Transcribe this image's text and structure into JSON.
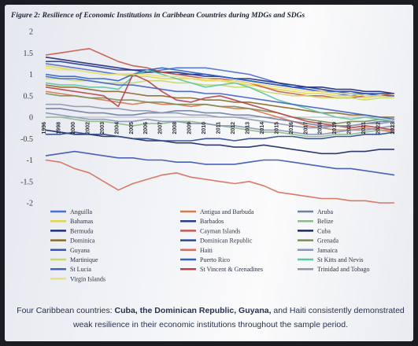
{
  "chart_data": {
    "type": "line",
    "title": "Figure 2: Resilience of Economic Institutions in Caribbean Countries during MDGs and SDGs",
    "xlabel": "",
    "ylabel": "",
    "ylim": [
      -2,
      2
    ],
    "yticks": [
      "2",
      "1.5",
      "1",
      "0.5",
      "0",
      "-0.5",
      "-1",
      "-1.5",
      "-2"
    ],
    "x": [
      "1996",
      "1998",
      "2000",
      "2002",
      "2003",
      "2004",
      "2005",
      "2006",
      "2007",
      "2008",
      "2009",
      "2010",
      "2011",
      "2012",
      "2013",
      "2014",
      "2015",
      "2016",
      "2017",
      "2018",
      "2019",
      "2020",
      "2021",
      "2022",
      "2023"
    ],
    "grid": false,
    "legend_position": "bottom",
    "series": [
      {
        "name": "Anguilla",
        "color": "#4a6fd0",
        "values": [
          1.25,
          1.2,
          1.15,
          1.1,
          1.05,
          1.0,
          1.0,
          1.05,
          1.1,
          1.15,
          1.15,
          1.15,
          1.1,
          1.05,
          1.0,
          0.9,
          0.8,
          0.7,
          0.65,
          0.6,
          0.55,
          0.5,
          0.55,
          0.5,
          0.5
        ]
      },
      {
        "name": "Antigua and Barbuda",
        "color": "#d9794f",
        "values": [
          0.6,
          0.55,
          0.5,
          0.45,
          0.4,
          0.35,
          0.3,
          0.35,
          0.3,
          0.3,
          0.25,
          0.3,
          0.25,
          0.2,
          0.2,
          0.1,
          0.0,
          -0.1,
          -0.2,
          -0.25,
          -0.3,
          -0.3,
          -0.25,
          -0.3,
          -0.35
        ]
      },
      {
        "name": "Aruba",
        "color": "#6f7fa6",
        "values": [
          0.2,
          0.2,
          0.15,
          0.1,
          0.1,
          0.05,
          0.05,
          0.1,
          0.1,
          0.15,
          0.15,
          0.1,
          0.1,
          0.05,
          0.05,
          0.0,
          -0.05,
          -0.1,
          -0.15,
          -0.2,
          -0.2,
          -0.2,
          -0.15,
          -0.1,
          -0.1
        ]
      },
      {
        "name": "Bahamas",
        "color": "#e3d34a",
        "values": [
          1.2,
          1.15,
          1.1,
          1.05,
          1.0,
          1.0,
          0.95,
          0.95,
          0.9,
          0.9,
          0.9,
          0.85,
          0.85,
          0.8,
          0.75,
          0.7,
          0.65,
          0.6,
          0.55,
          0.55,
          0.5,
          0.5,
          0.45,
          0.5,
          0.5
        ]
      },
      {
        "name": "Barbados",
        "color": "#2c3c8c",
        "values": [
          1.3,
          1.3,
          1.25,
          1.2,
          1.15,
          1.1,
          1.1,
          1.05,
          1.05,
          1.0,
          1.0,
          0.95,
          0.95,
          0.9,
          0.85,
          0.8,
          0.75,
          0.7,
          0.7,
          0.65,
          0.6,
          0.6,
          0.55,
          0.55,
          0.55
        ]
      },
      {
        "name": "Belize",
        "color": "#8fb98a",
        "values": [
          0.0,
          0.0,
          -0.05,
          -0.1,
          -0.1,
          -0.15,
          -0.2,
          -0.15,
          -0.15,
          -0.1,
          -0.1,
          -0.15,
          -0.2,
          -0.25,
          -0.3,
          -0.35,
          -0.35,
          -0.4,
          -0.45,
          -0.45,
          -0.4,
          -0.4,
          -0.35,
          -0.3,
          -0.3
        ]
      },
      {
        "name": "Bermuda",
        "color": "#1f2d7a",
        "values": [
          1.4,
          1.35,
          1.3,
          1.25,
          1.2,
          1.15,
          1.1,
          1.1,
          1.05,
          1.05,
          1.0,
          1.0,
          0.95,
          0.9,
          0.9,
          0.85,
          0.8,
          0.75,
          0.7,
          0.7,
          0.65,
          0.65,
          0.6,
          0.6,
          0.55
        ]
      },
      {
        "name": "Cayman Islands",
        "color": "#c75a4c",
        "values": [
          1.45,
          1.5,
          1.55,
          1.6,
          1.45,
          1.3,
          1.2,
          1.15,
          1.05,
          1.0,
          0.95,
          0.9,
          0.9,
          0.85,
          0.8,
          0.7,
          0.6,
          0.55,
          0.5,
          0.5,
          0.45,
          0.45,
          0.5,
          0.5,
          0.55
        ]
      },
      {
        "name": "Cuba",
        "color": "#1d2a63",
        "values": [
          -0.3,
          -0.35,
          -0.4,
          -0.4,
          -0.45,
          -0.45,
          -0.5,
          -0.55,
          -0.55,
          -0.6,
          -0.6,
          -0.65,
          -0.65,
          -0.7,
          -0.7,
          -0.65,
          -0.7,
          -0.75,
          -0.8,
          -0.85,
          -0.85,
          -0.8,
          -0.8,
          -0.75,
          -0.75
        ]
      },
      {
        "name": "Dominica",
        "color": "#8a6a28",
        "values": [
          0.75,
          0.7,
          0.7,
          0.65,
          0.6,
          0.6,
          0.55,
          0.5,
          0.5,
          0.45,
          0.45,
          0.4,
          0.4,
          0.35,
          0.35,
          0.3,
          0.25,
          0.2,
          0.15,
          0.1,
          0.1,
          0.05,
          0.05,
          0.0,
          0.0
        ]
      },
      {
        "name": "Dominican Republic",
        "color": "#2b4a8c",
        "values": [
          -0.4,
          -0.4,
          -0.35,
          -0.4,
          -0.4,
          -0.45,
          -0.5,
          -0.5,
          -0.55,
          -0.55,
          -0.55,
          -0.5,
          -0.5,
          -0.55,
          -0.5,
          -0.5,
          -0.45,
          -0.45,
          -0.5,
          -0.5,
          -0.45,
          -0.45,
          -0.4,
          -0.4,
          -0.35
        ]
      },
      {
        "name": "Grenada",
        "color": "#7a8d54",
        "values": [
          0.55,
          0.5,
          0.5,
          0.45,
          0.45,
          0.4,
          0.4,
          0.35,
          0.35,
          0.3,
          0.3,
          0.3,
          0.25,
          0.25,
          0.2,
          0.15,
          0.1,
          0.0,
          -0.05,
          -0.1,
          -0.15,
          -0.1,
          -0.1,
          -0.05,
          -0.1
        ]
      },
      {
        "name": "Guyana",
        "color": "#3a55b0",
        "values": [
          -0.9,
          -0.85,
          -0.8,
          -0.85,
          -0.9,
          -0.95,
          -0.95,
          -1.0,
          -1.0,
          -1.05,
          -1.05,
          -1.1,
          -1.1,
          -1.1,
          -1.05,
          -1.0,
          -1.0,
          -1.05,
          -1.1,
          -1.15,
          -1.2,
          -1.2,
          -1.25,
          -1.3,
          -1.35
        ]
      },
      {
        "name": "Haiti",
        "color": "#d4705a",
        "values": [
          -1.0,
          -1.05,
          -1.2,
          -1.3,
          -1.5,
          -1.7,
          -1.55,
          -1.45,
          -1.35,
          -1.3,
          -1.4,
          -1.45,
          -1.5,
          -1.55,
          -1.5,
          -1.6,
          -1.75,
          -1.8,
          -1.85,
          -1.9,
          -1.9,
          -1.95,
          -1.95,
          -2.0,
          -2.0
        ]
      },
      {
        "name": "Jamaica",
        "color": "#8a96b8",
        "values": [
          0.1,
          0.05,
          0.0,
          -0.05,
          -0.05,
          -0.1,
          -0.1,
          -0.05,
          -0.1,
          -0.1,
          -0.15,
          -0.15,
          -0.2,
          -0.2,
          -0.25,
          -0.3,
          -0.3,
          -0.35,
          -0.4,
          -0.4,
          -0.35,
          -0.3,
          -0.3,
          -0.25,
          -0.2
        ]
      },
      {
        "name": "Martinique",
        "color": "#c9d86a",
        "values": [
          0.9,
          0.9,
          0.85,
          0.85,
          0.8,
          0.8,
          0.8,
          0.85,
          0.85,
          0.8,
          0.8,
          0.75,
          0.75,
          0.7,
          0.7,
          0.6,
          0.55,
          0.5,
          0.5,
          0.45,
          0.45,
          0.45,
          0.4,
          0.45,
          0.45
        ]
      },
      {
        "name": "Puerto Rico",
        "color": "#2f62c9",
        "values": [
          1.0,
          0.95,
          0.95,
          0.9,
          0.9,
          0.85,
          1.0,
          1.1,
          1.15,
          1.1,
          1.05,
          1.0,
          0.95,
          0.9,
          0.85,
          0.8,
          0.75,
          0.7,
          0.65,
          0.6,
          0.6,
          0.55,
          0.55,
          0.5,
          0.5
        ]
      },
      {
        "name": "St Kitts and Nevis",
        "color": "#5fc6a3",
        "values": [
          0.8,
          0.75,
          0.75,
          0.7,
          0.7,
          0.65,
          0.95,
          1.1,
          1.0,
          0.9,
          0.8,
          0.7,
          0.75,
          0.8,
          0.7,
          0.55,
          0.4,
          0.3,
          0.2,
          0.1,
          0.0,
          -0.05,
          0.0,
          -0.05,
          -0.1
        ]
      },
      {
        "name": "St Lucia",
        "color": "#4164c2",
        "values": [
          0.95,
          0.9,
          0.9,
          0.85,
          0.8,
          0.75,
          0.75,
          0.7,
          0.65,
          0.6,
          0.6,
          0.55,
          0.55,
          0.5,
          0.45,
          0.4,
          0.35,
          0.3,
          0.25,
          0.2,
          0.15,
          0.1,
          0.05,
          0.0,
          -0.05
        ]
      },
      {
        "name": "St Vincent & Grenadines",
        "color": "#b8434a",
        "values": [
          0.7,
          0.65,
          0.6,
          0.55,
          0.5,
          0.25,
          1.0,
          0.85,
          0.6,
          0.4,
          0.35,
          0.45,
          0.5,
          0.4,
          0.3,
          0.2,
          0.1,
          0.0,
          -0.1,
          -0.15,
          -0.2,
          -0.25,
          -0.2,
          -0.25,
          -0.3
        ]
      },
      {
        "name": "Trinidad and Tobago",
        "color": "#9098ae",
        "values": [
          0.3,
          0.3,
          0.25,
          0.25,
          0.2,
          0.2,
          0.15,
          0.15,
          0.1,
          0.1,
          0.05,
          0.05,
          0.0,
          0.0,
          -0.05,
          -0.1,
          -0.15,
          -0.2,
          -0.25,
          -0.25,
          -0.2,
          -0.2,
          -0.15,
          -0.15,
          -0.1
        ]
      },
      {
        "name": "Virgin Islands",
        "color": "#e8e07a",
        "values": [
          1.15,
          1.1,
          1.1,
          1.05,
          1.0,
          1.0,
          1.0,
          1.0,
          0.95,
          0.95,
          0.9,
          0.9,
          0.85,
          0.85,
          0.8,
          0.75,
          0.7,
          0.65,
          0.6,
          0.6,
          0.55,
          0.55,
          0.5,
          0.5,
          0.45
        ]
      }
    ],
    "legend": [
      {
        "label": "Anguilla",
        "color": "#4a6fd0"
      },
      {
        "label": "Antigua and Barbuda",
        "color": "#d9794f"
      },
      {
        "label": "Aruba",
        "color": "#6f7fa6"
      },
      {
        "label": "Bahamas",
        "color": "#e3d34a"
      },
      {
        "label": "Barbados",
        "color": "#2c3c8c"
      },
      {
        "label": "Belize",
        "color": "#8fb98a"
      },
      {
        "label": "Bermuda",
        "color": "#1f2d7a"
      },
      {
        "label": "Cayman Islands",
        "color": "#c75a4c"
      },
      {
        "label": "Cuba",
        "color": "#1d2a63"
      },
      {
        "label": "Dominica",
        "color": "#8a6a28"
      },
      {
        "label": "Dominican Republic",
        "color": "#2b4a8c"
      },
      {
        "label": "Grenada",
        "color": "#7a8d54"
      },
      {
        "label": "Guyana",
        "color": "#3a55b0"
      },
      {
        "label": "Haiti",
        "color": "#d4705a"
      },
      {
        "label": "Jamaica",
        "color": "#8a96b8"
      },
      {
        "label": "Martinique",
        "color": "#c9d86a"
      },
      {
        "label": "Puerto Rico",
        "color": "#2f62c9"
      },
      {
        "label": "St Kitts and Nevis",
        "color": "#5fc6a3"
      },
      {
        "label": "St Lucia",
        "color": "#4164c2"
      },
      {
        "label": "St Vincent & Grenadines",
        "color": "#b8434a"
      },
      {
        "label": "Trinidad and Tobago",
        "color": "#9098ae"
      },
      {
        "label": "Virgin Islands",
        "color": "#e8e07a"
      }
    ]
  },
  "caption": {
    "part1": "Four Caribbean countries: ",
    "countries": "Cuba, the Dominican Republic, Guyana,",
    "part2": " and Haiti consistently demonstrated weak resilience in their economic institutions throughout the sample period."
  }
}
